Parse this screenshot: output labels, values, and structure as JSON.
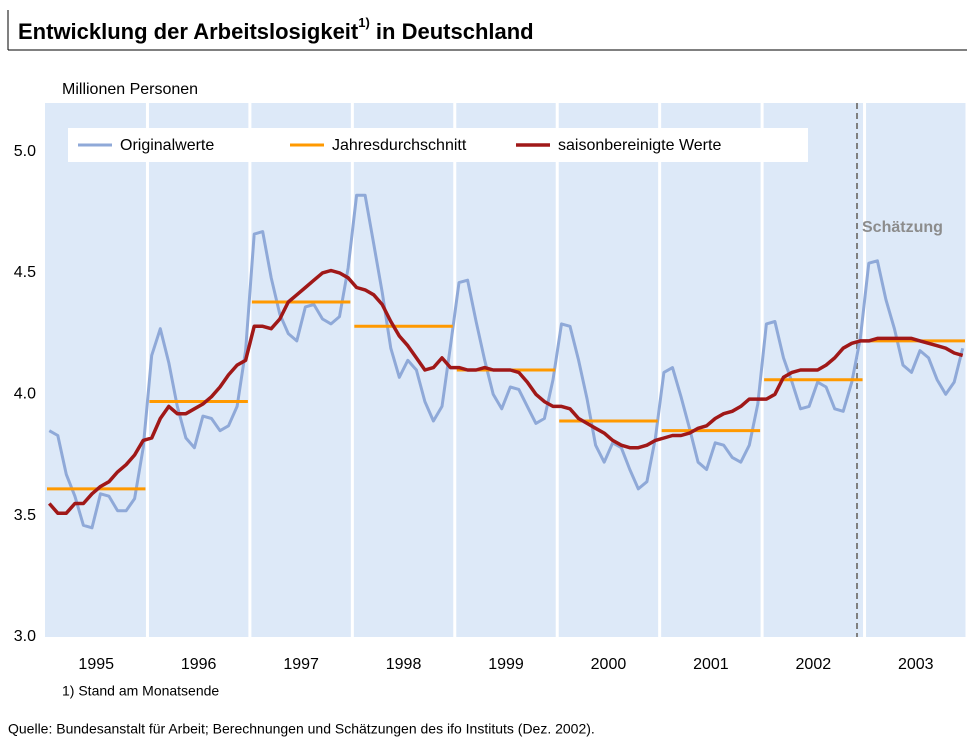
{
  "chart_data": {
    "type": "line",
    "title": "Entwicklung der Arbeitslosigkeit",
    "title_footnote_mark": "1)",
    "title_end": " in Deutschland",
    "y_label": "Millionen Personen",
    "annotation": "Schätzung",
    "footnote": "1) Stand am Monatsende",
    "source": "Quelle: Bundesanstalt für Arbeit; Berechnungen und Schätzungen des ifo Instituts (Dez. 2002).",
    "categories": [
      "1995",
      "1996",
      "1997",
      "1998",
      "1999",
      "2000",
      "2001",
      "2002",
      "2003"
    ],
    "ylim": [
      3,
      5.2
    ],
    "yticks": [
      {
        "value": 3,
        "label": "3.0"
      },
      3.5,
      {
        "value": 4,
        "label": "4.0"
      },
      4.5,
      {
        "value": 5,
        "label": "5.0"
      }
    ],
    "series": [
      {
        "name": "Originalwerte",
        "color": "#8fa9d8",
        "values": [
          [
            3.85,
            3.83,
            3.67,
            3.58,
            3.46,
            3.45,
            3.59,
            3.58,
            3.52,
            3.52,
            3.57,
            3.78
          ],
          [
            4.16,
            4.27,
            4.13,
            3.95,
            3.82,
            3.78,
            3.91,
            3.9,
            3.85,
            3.87,
            3.95,
            4.18
          ],
          [
            4.66,
            4.67,
            4.48,
            4.33,
            4.25,
            4.22,
            4.36,
            4.37,
            4.31,
            4.29,
            4.32,
            4.52
          ],
          [
            4.82,
            4.82,
            4.62,
            4.42,
            4.19,
            4.07,
            4.14,
            4.1,
            3.97,
            3.89,
            3.95,
            4.2
          ],
          [
            4.46,
            4.47,
            4.3,
            4.14,
            4.0,
            3.94,
            4.03,
            4.02,
            3.95,
            3.88,
            3.9,
            4.06
          ],
          [
            4.29,
            4.28,
            4.14,
            3.98,
            3.79,
            3.72,
            3.8,
            3.78,
            3.69,
            3.61,
            3.64,
            3.82
          ],
          [
            4.09,
            4.11,
            3.99,
            3.86,
            3.72,
            3.69,
            3.8,
            3.79,
            3.74,
            3.72,
            3.79,
            3.96
          ],
          [
            4.29,
            4.3,
            4.15,
            4.05,
            3.94,
            3.95,
            4.05,
            4.03,
            3.94,
            3.93,
            4.05,
            4.23
          ],
          [
            4.54,
            4.55,
            4.39,
            4.27,
            4.12,
            4.09,
            4.18,
            4.15,
            4.06,
            4.0,
            4.05,
            4.19
          ]
        ]
      },
      {
        "name": "Jahresdurchschnitt",
        "color": "#ff9900",
        "values": [
          3.61,
          3.97,
          4.38,
          4.28,
          4.1,
          3.89,
          3.85,
          4.06,
          4.22
        ]
      },
      {
        "name": "saisonbereinigte Werte",
        "color": "#a01818",
        "values": [
          [
            3.55,
            3.51,
            3.51,
            3.55,
            3.55,
            3.59,
            3.62,
            3.64,
            3.68,
            3.71,
            3.75,
            3.81
          ],
          [
            3.82,
            3.9,
            3.95,
            3.92,
            3.92,
            3.94,
            3.96,
            3.99,
            4.03,
            4.08,
            4.12,
            4.14
          ],
          [
            4.28,
            4.28,
            4.27,
            4.31,
            4.38,
            4.41,
            4.44,
            4.47,
            4.5,
            4.51,
            4.5,
            4.48
          ],
          [
            4.44,
            4.43,
            4.41,
            4.37,
            4.3,
            4.24,
            4.2,
            4.15,
            4.1,
            4.11,
            4.15,
            4.11
          ],
          [
            4.11,
            4.1,
            4.1,
            4.11,
            4.1,
            4.1,
            4.1,
            4.09,
            4.05,
            4.0,
            3.97,
            3.95
          ],
          [
            3.95,
            3.94,
            3.9,
            3.88,
            3.86,
            3.84,
            3.81,
            3.79,
            3.78,
            3.78,
            3.79,
            3.81
          ],
          [
            3.82,
            3.83,
            3.83,
            3.84,
            3.86,
            3.87,
            3.9,
            3.92,
            3.93,
            3.95,
            3.98,
            3.98
          ],
          [
            3.98,
            4.0,
            4.07,
            4.09,
            4.1,
            4.1,
            4.1,
            4.12,
            4.15,
            4.19,
            4.21,
            4.22
          ],
          [
            4.22,
            4.23,
            4.23,
            4.23,
            4.23,
            4.23,
            4.22,
            4.21,
            4.2,
            4.19,
            4.17,
            4.16
          ]
        ]
      }
    ]
  }
}
